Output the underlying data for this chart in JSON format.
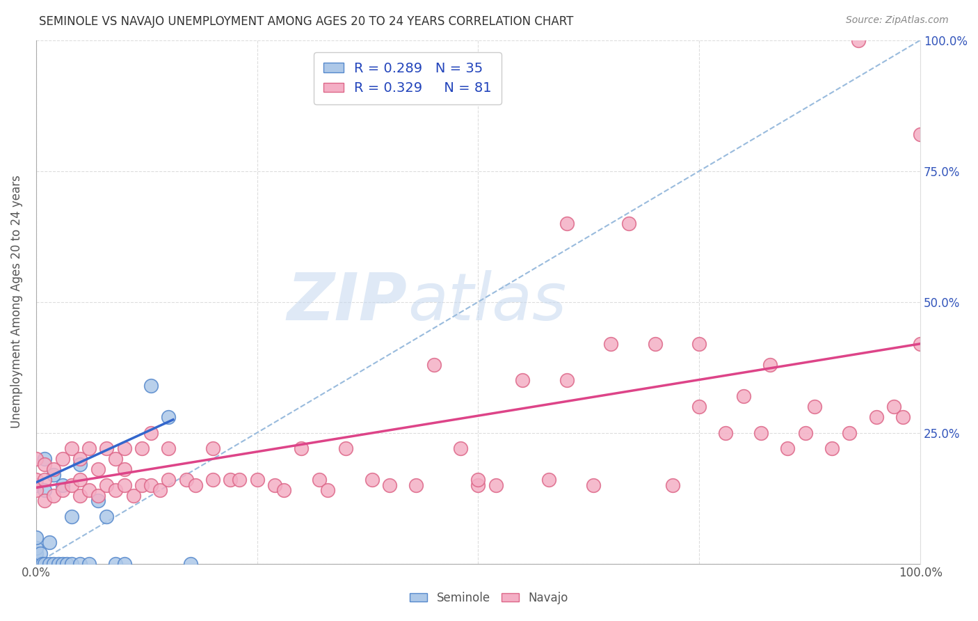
{
  "title": "SEMINOLE VS NAVAJO UNEMPLOYMENT AMONG AGES 20 TO 24 YEARS CORRELATION CHART",
  "source": "Source: ZipAtlas.com",
  "ylabel": "Unemployment Among Ages 20 to 24 years",
  "xlim": [
    0,
    1.0
  ],
  "ylim": [
    0,
    1.0
  ],
  "xticks": [
    0.0,
    0.25,
    0.5,
    0.75,
    1.0
  ],
  "yticks": [
    0.0,
    0.25,
    0.5,
    0.75,
    1.0
  ],
  "xticklabels": [
    "0.0%",
    "",
    "",
    "",
    "100.0%"
  ],
  "right_yticklabels": [
    "",
    "25.0%",
    "50.0%",
    "75.0%",
    "100.0%"
  ],
  "seminole_color": "#adc8e8",
  "navajo_color": "#f4afc5",
  "seminole_edge": "#5588cc",
  "navajo_edge": "#dd6688",
  "trend_seminole_color": "#3366cc",
  "trend_navajo_color": "#dd4488",
  "diagonal_color": "#99bbdd",
  "R_seminole": 0.289,
  "N_seminole": 35,
  "R_navajo": 0.329,
  "N_navajo": 81,
  "legend_R_color": "#2244bb",
  "background_color": "#ffffff",
  "grid_color": "#dddddd",
  "seminole_x": [
    0.0,
    0.0,
    0.0,
    0.0,
    0.0,
    0.0,
    0.0,
    0.0,
    0.0,
    0.005,
    0.005,
    0.007,
    0.01,
    0.01,
    0.01,
    0.015,
    0.015,
    0.02,
    0.02,
    0.025,
    0.03,
    0.03,
    0.035,
    0.04,
    0.04,
    0.05,
    0.05,
    0.06,
    0.07,
    0.08,
    0.09,
    0.1,
    0.13,
    0.15,
    0.175
  ],
  "seminole_y": [
    0.0,
    0.0,
    0.0,
    0.0,
    0.01,
    0.02,
    0.03,
    0.15,
    0.05,
    0.0,
    0.02,
    0.0,
    0.0,
    0.14,
    0.2,
    0.0,
    0.04,
    0.0,
    0.17,
    0.0,
    0.0,
    0.15,
    0.0,
    0.0,
    0.09,
    0.0,
    0.19,
    0.0,
    0.12,
    0.09,
    0.0,
    0.0,
    0.34,
    0.28,
    0.0
  ],
  "navajo_x": [
    0.0,
    0.0,
    0.0,
    0.01,
    0.01,
    0.01,
    0.02,
    0.02,
    0.03,
    0.03,
    0.04,
    0.04,
    0.05,
    0.05,
    0.05,
    0.06,
    0.06,
    0.07,
    0.07,
    0.08,
    0.08,
    0.09,
    0.09,
    0.1,
    0.1,
    0.1,
    0.11,
    0.12,
    0.12,
    0.13,
    0.13,
    0.14,
    0.15,
    0.15,
    0.17,
    0.18,
    0.2,
    0.2,
    0.22,
    0.23,
    0.25,
    0.27,
    0.28,
    0.3,
    0.32,
    0.33,
    0.35,
    0.38,
    0.4,
    0.43,
    0.45,
    0.48,
    0.5,
    0.5,
    0.52,
    0.55,
    0.58,
    0.6,
    0.6,
    0.63,
    0.65,
    0.67,
    0.7,
    0.72,
    0.75,
    0.75,
    0.78,
    0.8,
    0.82,
    0.83,
    0.85,
    0.87,
    0.88,
    0.9,
    0.92,
    0.93,
    0.95,
    0.97,
    0.98,
    1.0,
    1.0
  ],
  "navajo_y": [
    0.14,
    0.16,
    0.2,
    0.12,
    0.16,
    0.19,
    0.13,
    0.18,
    0.14,
    0.2,
    0.15,
    0.22,
    0.13,
    0.16,
    0.2,
    0.14,
    0.22,
    0.13,
    0.18,
    0.15,
    0.22,
    0.14,
    0.2,
    0.15,
    0.18,
    0.22,
    0.13,
    0.15,
    0.22,
    0.15,
    0.25,
    0.14,
    0.16,
    0.22,
    0.16,
    0.15,
    0.16,
    0.22,
    0.16,
    0.16,
    0.16,
    0.15,
    0.14,
    0.22,
    0.16,
    0.14,
    0.22,
    0.16,
    0.15,
    0.15,
    0.38,
    0.22,
    0.15,
    0.16,
    0.15,
    0.35,
    0.16,
    0.35,
    0.65,
    0.15,
    0.42,
    0.65,
    0.42,
    0.15,
    0.3,
    0.42,
    0.25,
    0.32,
    0.25,
    0.38,
    0.22,
    0.25,
    0.3,
    0.22,
    0.25,
    1.0,
    0.28,
    0.3,
    0.28,
    0.42,
    0.82
  ],
  "seminole_trend_x0": 0.0,
  "seminole_trend_y0": 0.155,
  "seminole_trend_x1": 0.155,
  "seminole_trend_y1": 0.275,
  "navajo_trend_x0": 0.0,
  "navajo_trend_y0": 0.145,
  "navajo_trend_x1": 1.0,
  "navajo_trend_y1": 0.42
}
